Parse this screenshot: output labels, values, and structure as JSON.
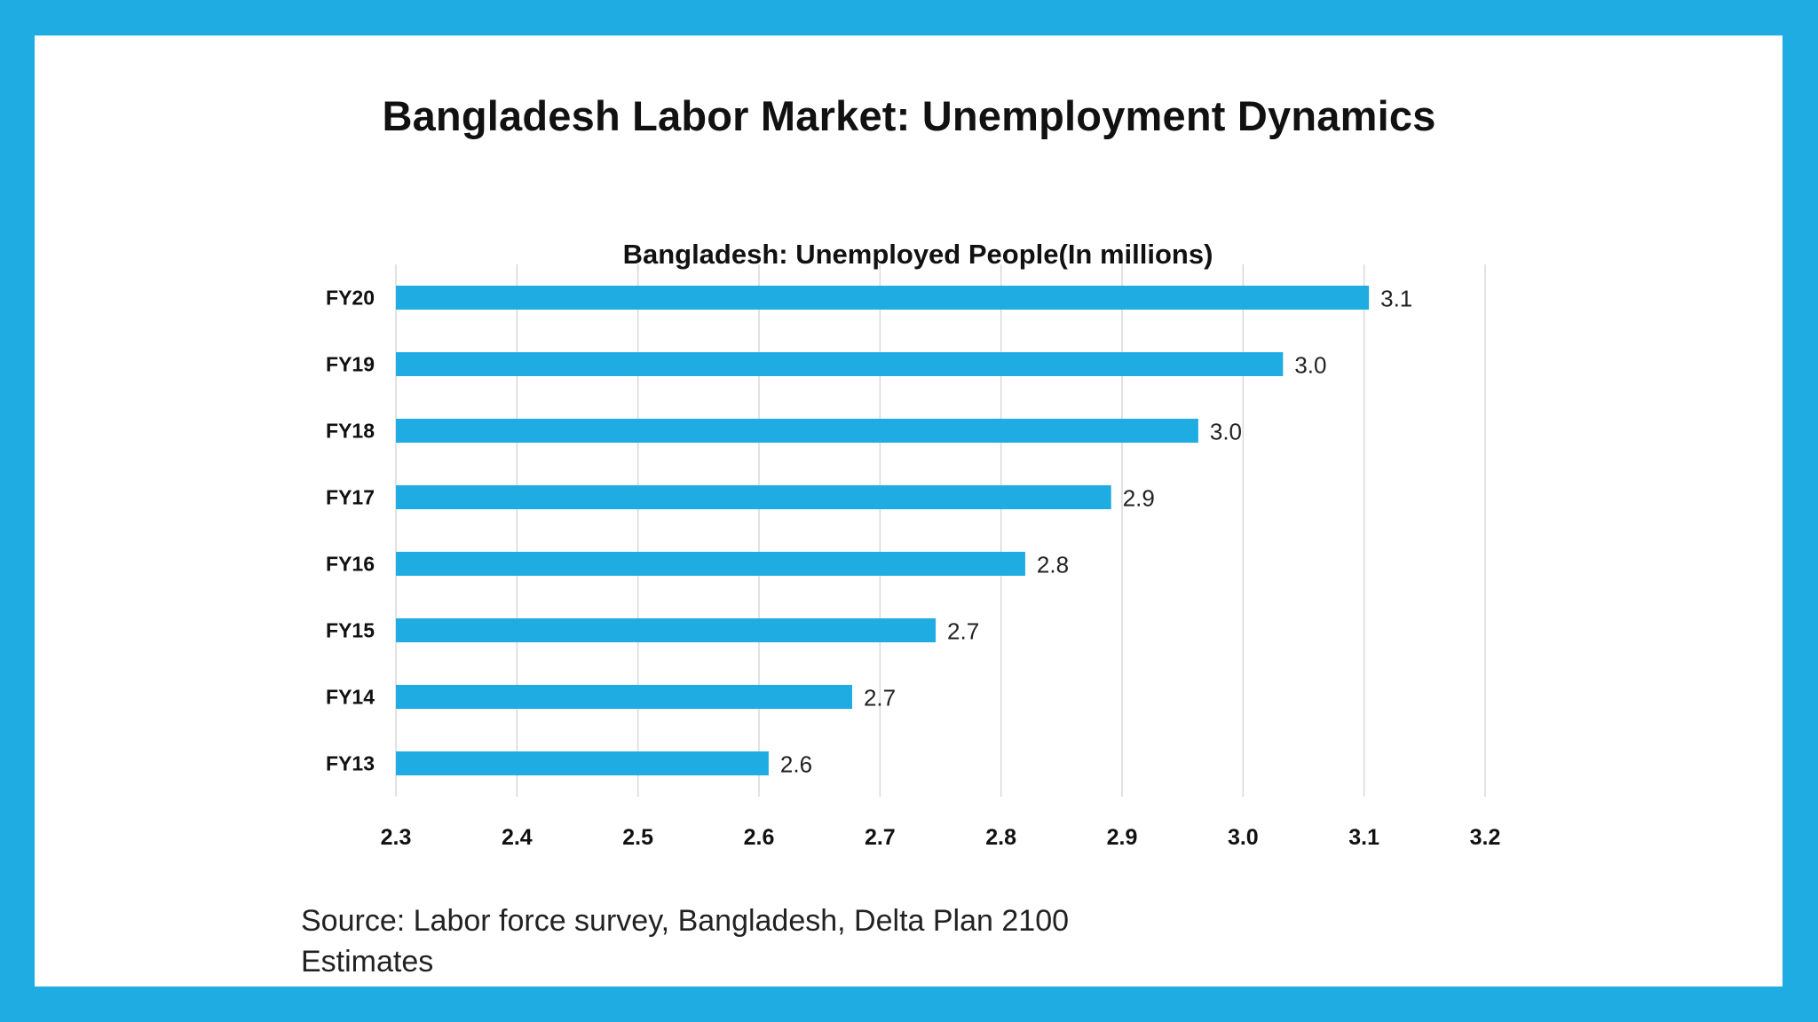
{
  "slide": {
    "title": "Bangladesh Labor Market: Unemployment Dynamics",
    "source": "Source: Labor force survey, Bangladesh, Delta Plan 2100 Estimates"
  },
  "colors": {
    "border": "#1eace3",
    "bar": "#1eace3",
    "gridline": "#d9d9d9"
  },
  "chart_data": {
    "type": "bar",
    "orientation": "horizontal",
    "title": "Bangladesh: Unemployed People(In millions)",
    "xlabel": "",
    "ylabel": "",
    "categories": [
      "FY20",
      "FY19",
      "FY18",
      "FY17",
      "FY16",
      "FY15",
      "FY14",
      "FY13"
    ],
    "values": [
      3.104,
      3.033,
      2.963,
      2.891,
      2.82,
      2.746,
      2.677,
      2.608
    ],
    "data_labels": [
      "3.1",
      "3.0",
      "3.0",
      "2.9",
      "2.8",
      "2.7",
      "2.7",
      "2.6"
    ],
    "xlim": [
      2.3,
      3.2
    ],
    "x_ticks": [
      "2.3",
      "2.4",
      "2.5",
      "2.6",
      "2.7",
      "2.8",
      "2.9",
      "3.0",
      "3.1",
      "3.2"
    ],
    "grid": true,
    "legend": "none"
  }
}
